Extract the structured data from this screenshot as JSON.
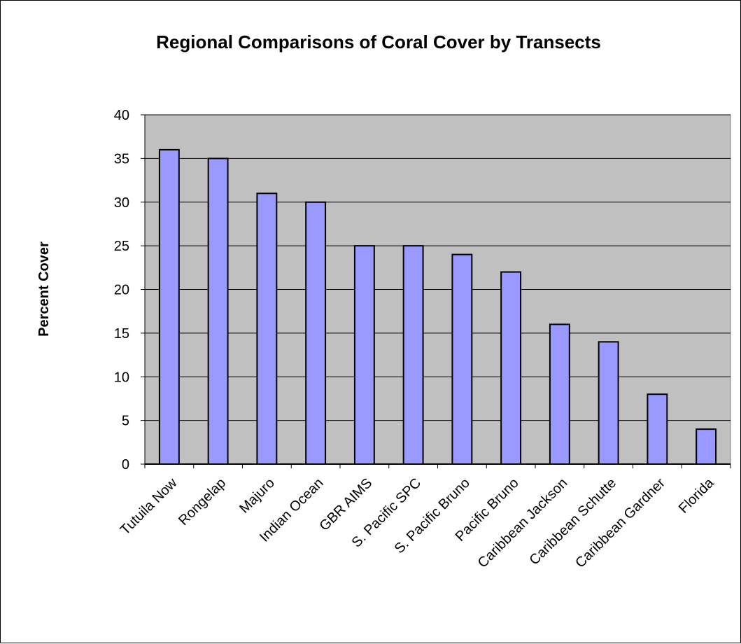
{
  "chart_data": {
    "type": "bar",
    "title": "Regional Comparisons of Coral Cover by Transects",
    "xlabel": "",
    "ylabel": "Percent Cover",
    "ylim": [
      0,
      40
    ],
    "yticks": [
      "0",
      "5",
      "10",
      "15",
      "20",
      "25",
      "30",
      "35",
      "40"
    ],
    "grid": true,
    "legend": "none",
    "categories": [
      "Tutuila Now",
      "Rongelap",
      "Majuro",
      "Indian Ocean",
      "GBR AIMS",
      "S. Pacific SPC",
      "S. Pacific Bruno",
      "Pacific Bruno",
      "Caribbean Jackson",
      "Caribbean Schutte",
      "Caribbean Gardner",
      "Florida"
    ],
    "values": [
      36,
      35,
      31,
      30,
      25,
      25,
      24,
      22,
      16,
      14,
      8,
      4
    ],
    "colors": {
      "bar_fill": "#9999ff",
      "bar_stroke": "#000000",
      "plot_background": "#c0c0c0",
      "gridline": "#000000",
      "page_background": "#ffffff"
    }
  }
}
